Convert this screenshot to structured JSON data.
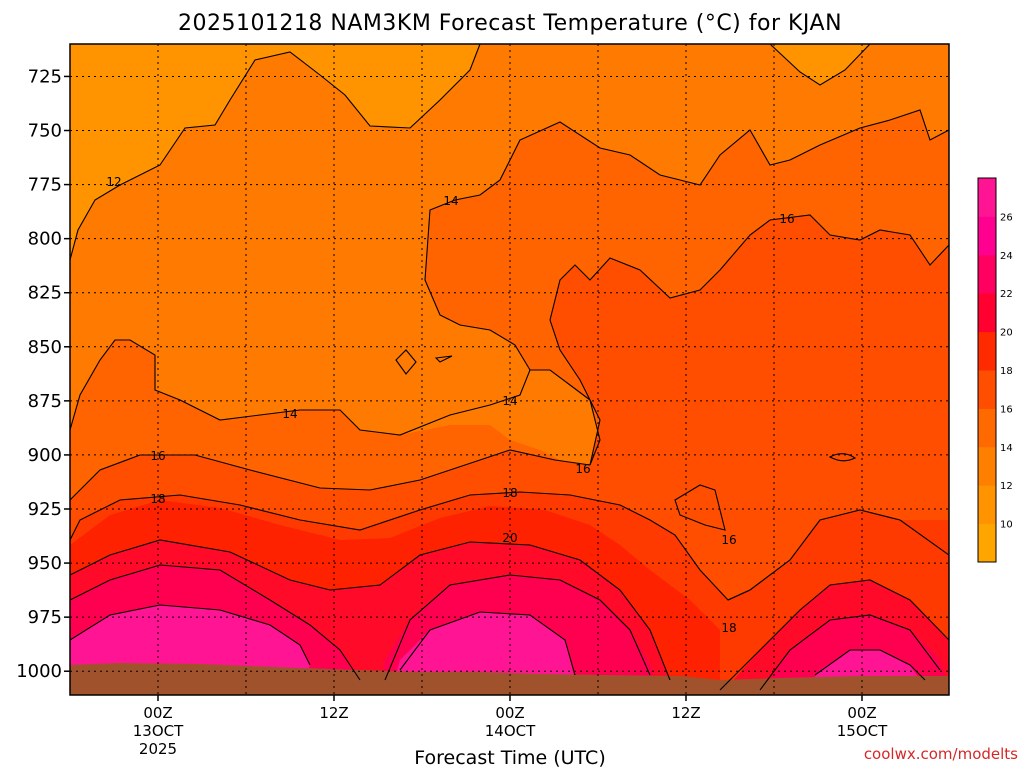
{
  "chart_data": {
    "type": "heatmap",
    "title": "2025101218 NAM3KM Forecast Temperature (°C) for KJAN",
    "xlabel": "Forecast Time (UTC)",
    "ylabel": "",
    "credit": "coolwx.com/modelts",
    "y_ticks": [
      "725",
      "750",
      "775",
      "800",
      "825",
      "850",
      "875",
      "900",
      "925",
      "950",
      "975",
      "1000"
    ],
    "y_range": [
      710,
      1011
    ],
    "x_ticks": [
      {
        "lines": [
          "00Z",
          "13OCT",
          "2025"
        ]
      },
      {
        "lines": [
          "12Z"
        ]
      },
      {
        "lines": [
          "00Z",
          "14OCT"
        ]
      },
      {
        "lines": [
          "12Z"
        ]
      },
      {
        "lines": [
          "00Z",
          "15OCT"
        ]
      }
    ],
    "contour_labels": [
      "12",
      "14",
      "14",
      "14",
      "16",
      "16",
      "16",
      "16",
      "18",
      "18",
      "18",
      "20"
    ],
    "colorbar": {
      "ticks": [
        "10",
        "12",
        "14",
        "16",
        "18",
        "20",
        "22",
        "24",
        "26"
      ],
      "colors": [
        "#ffa500",
        "#ff8c00",
        "#ff6a00",
        "#ff4a00",
        "#ff2000",
        "#ff0033",
        "#ff0066",
        "#ff0090",
        "#ff1493"
      ]
    },
    "colors": {
      "ground": "#a0522d",
      "plot_fill": "#ff8c00",
      "contour": "#000000"
    }
  }
}
